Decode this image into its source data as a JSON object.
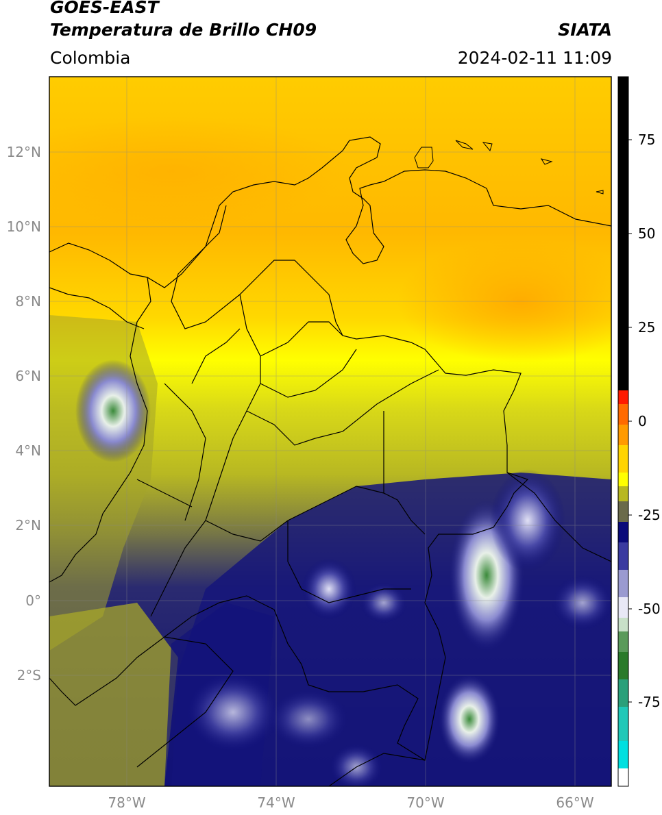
{
  "header": {
    "satellite": "GOES-EAST",
    "product": "Temperatura de Brillo CH09",
    "organization": "SIATA",
    "region": "Colombia",
    "timestamp": "2024-02-11 11:09"
  },
  "map": {
    "lat_range": [
      -5,
      14
    ],
    "lon_range": [
      -80,
      -65
    ],
    "lat_ticks": [
      "12°N",
      "10°N",
      "8°N",
      "6°N",
      "4°N",
      "2°N",
      "0°",
      "2°S"
    ],
    "lon_ticks": [
      "78°W",
      "74°W",
      "70°W",
      "66°W"
    ],
    "gridlines": true
  },
  "colorbar": {
    "unit_range": [
      -95,
      90
    ],
    "ticks": [
      "75",
      "50",
      "25",
      "0",
      "-25",
      "-50",
      "-75"
    ],
    "colors": {
      "black": "#000000",
      "red": "#ff1a00",
      "orange": "#ff9a00",
      "yellow": "#ffff00",
      "olive": "#9a9a2a",
      "navy": "#0a0a7a",
      "white": "#ffffff",
      "green": "#2a8a2a",
      "cyan": "#00e0e0"
    }
  }
}
